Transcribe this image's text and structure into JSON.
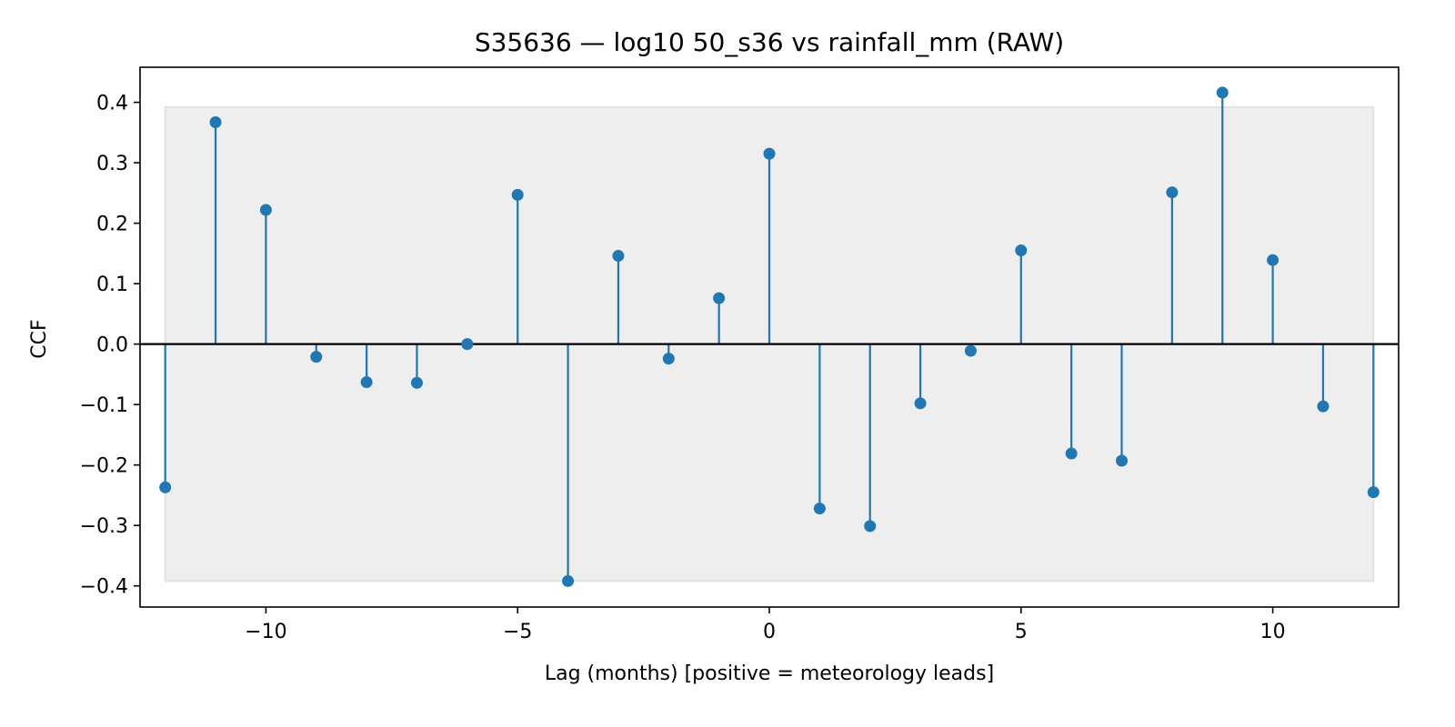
{
  "chart_data": {
    "type": "stem",
    "title": "S35636 — log10 50_s36 vs rainfall_mm (RAW)",
    "xlabel": "Lag (months)  [positive = meteorology leads]",
    "ylabel": "CCF",
    "xlim": [
      -12.5,
      12.5
    ],
    "ylim": [
      -0.435,
      0.458
    ],
    "x_ticks": [
      -10,
      -5,
      0,
      5,
      10
    ],
    "x_tick_labels": [
      "−10",
      "−5",
      "0",
      "5",
      "10"
    ],
    "y_ticks": [
      -0.4,
      -0.3,
      -0.2,
      -0.1,
      0.0,
      0.1,
      0.2,
      0.3,
      0.4
    ],
    "y_tick_labels": [
      "−0.4",
      "−0.3",
      "−0.2",
      "−0.1",
      "0.0",
      "0.1",
      "0.2",
      "0.3",
      "0.4"
    ],
    "confidence_band": [
      -0.392,
      0.392
    ],
    "grid": false,
    "series": [
      {
        "x": [
          -12,
          -11,
          -10,
          -9,
          -8,
          -7,
          -6,
          -5,
          -4,
          -3,
          -2,
          -1,
          0,
          1,
          2,
          3,
          4,
          5,
          6,
          7,
          8,
          9,
          10,
          11,
          12
        ],
        "values": [
          -0.237,
          0.367,
          0.222,
          -0.021,
          -0.063,
          -0.064,
          0.0,
          0.247,
          -0.392,
          0.146,
          -0.024,
          0.076,
          0.315,
          -0.272,
          -0.301,
          -0.098,
          -0.011,
          0.155,
          -0.181,
          -0.193,
          0.251,
          0.416,
          0.139,
          -0.103,
          -0.245
        ]
      }
    ],
    "colors": {
      "stem": "#1f77b4",
      "band": "#eeeeee",
      "band_edge": "#e2e2e2",
      "baseline": "#000000"
    }
  }
}
